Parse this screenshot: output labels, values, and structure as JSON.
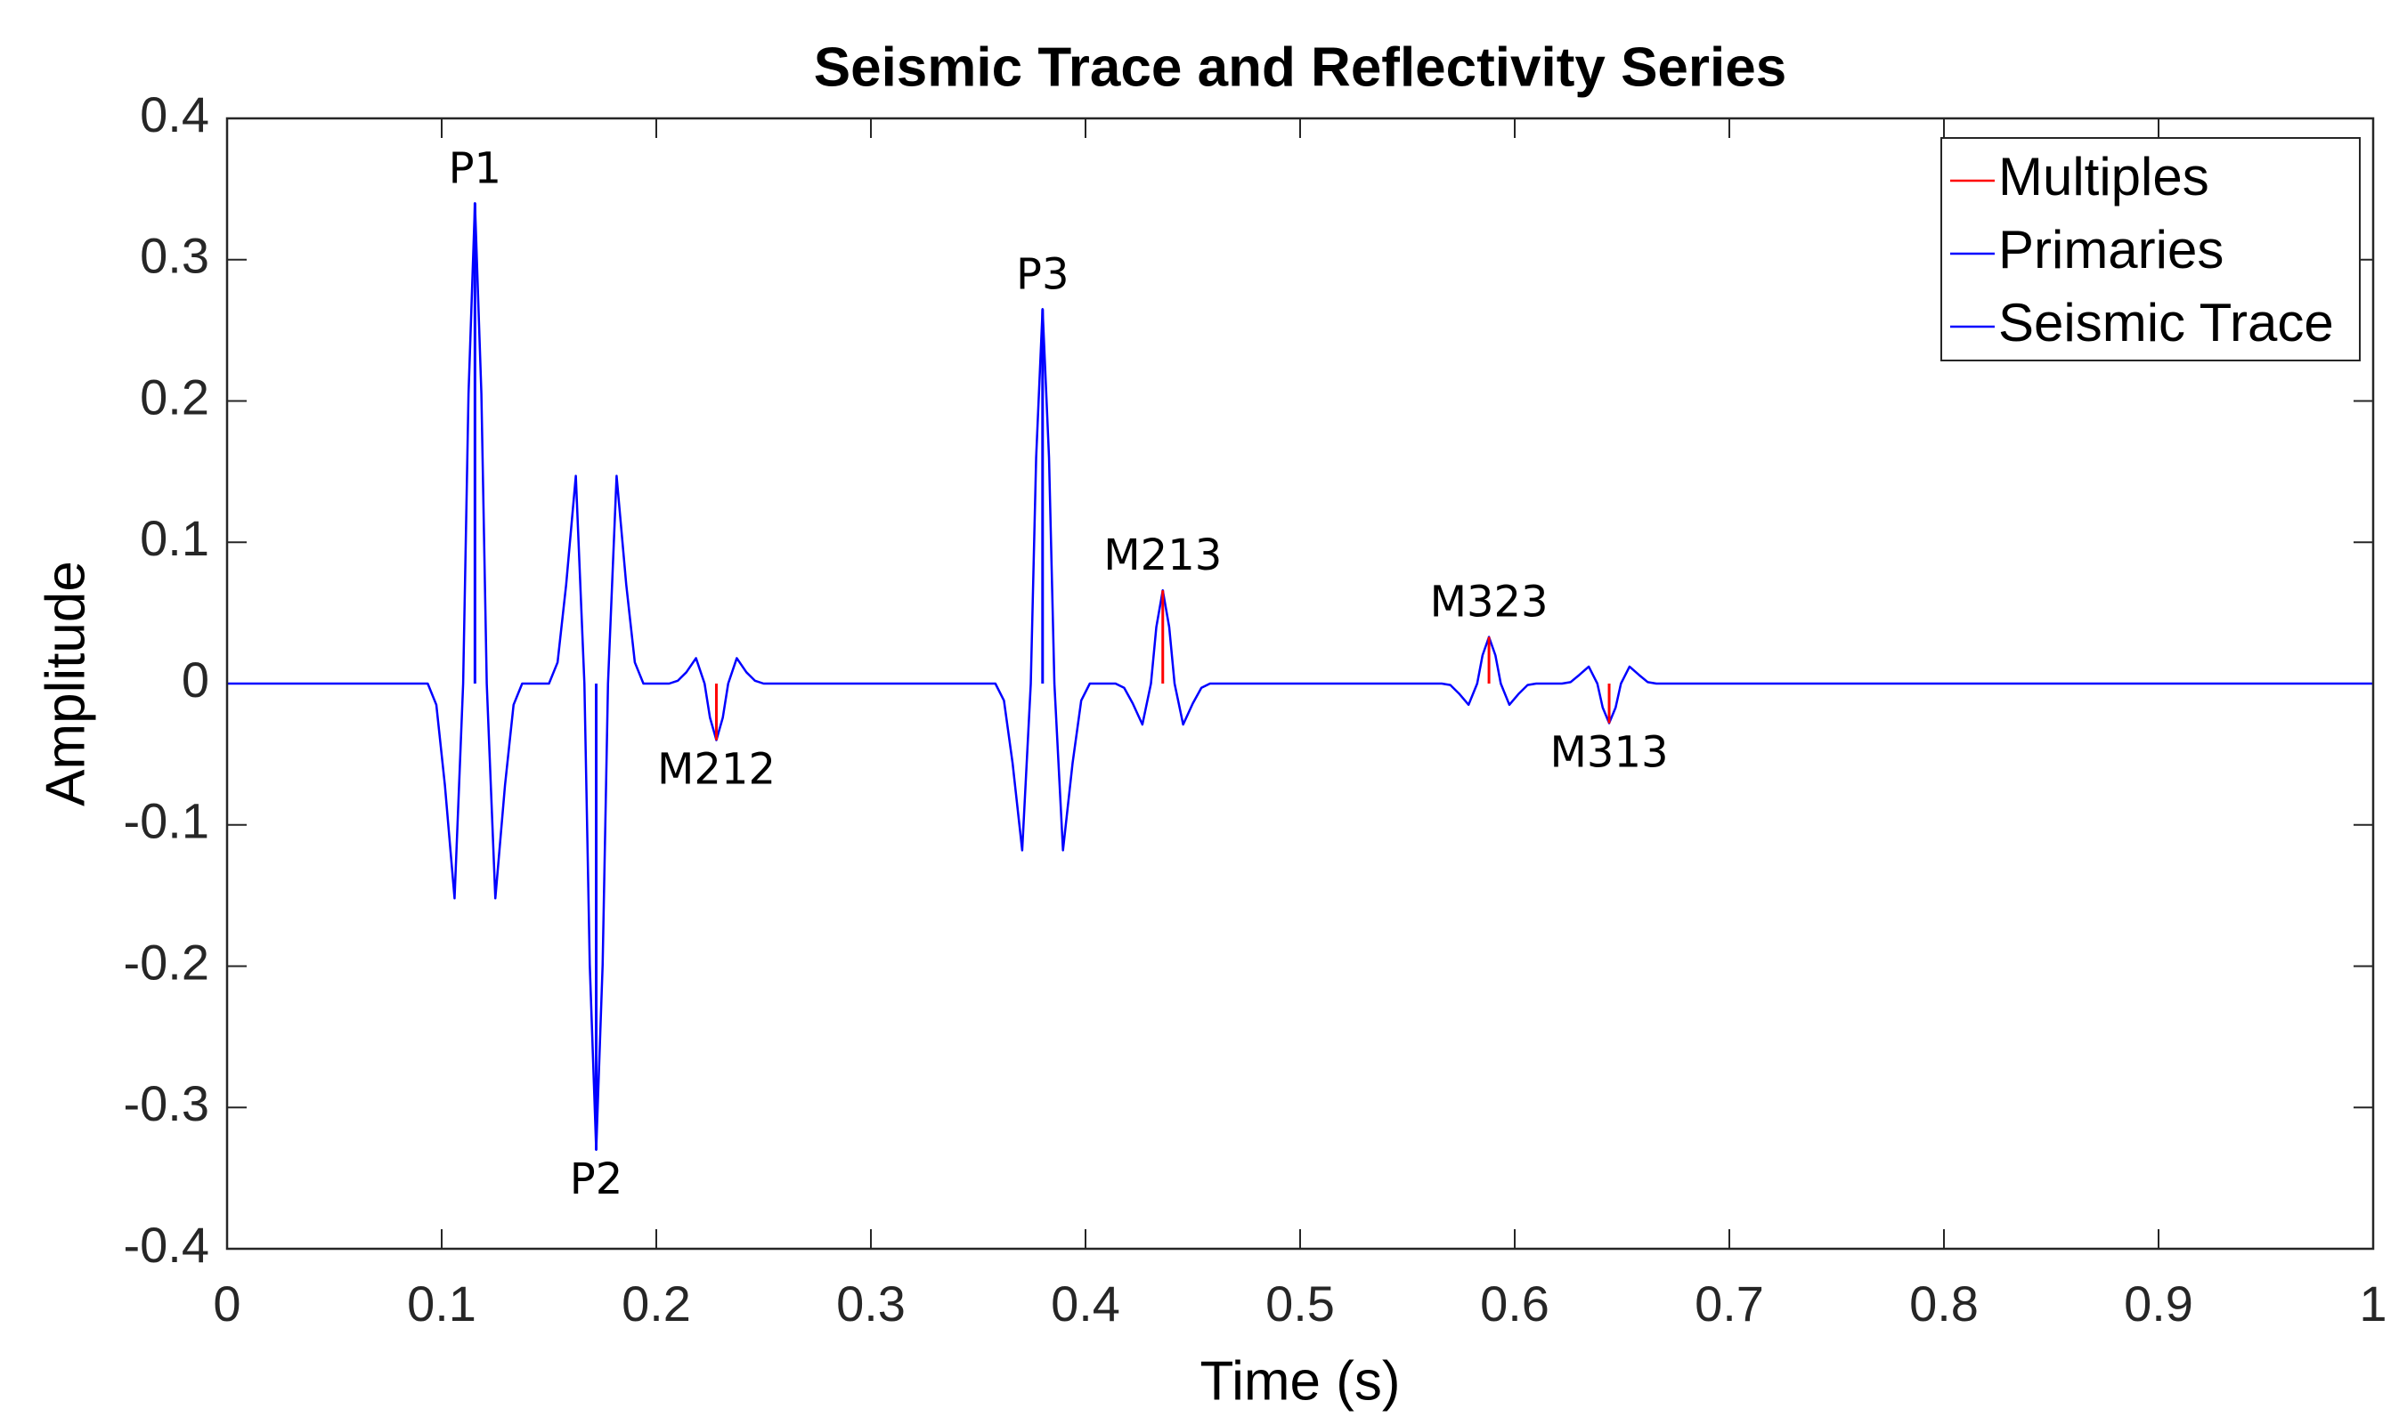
{
  "chart_data": {
    "type": "line",
    "title": "Seismic Trace and Reflectivity Series",
    "x_label": "Time (s)",
    "y_label": "Amplitude",
    "xlim": [
      0,
      1
    ],
    "ylim": [
      -0.4,
      0.4
    ],
    "xticks": [
      0,
      0.1,
      0.2,
      0.3,
      0.4,
      0.5,
      0.6,
      0.7,
      0.8,
      0.9,
      1
    ],
    "yticks": [
      -0.4,
      -0.3,
      -0.2,
      -0.1,
      0,
      0.1,
      0.2,
      0.3,
      0.4
    ],
    "grid": false,
    "legend_position": "top-right",
    "series": [
      {
        "name": "Multiples",
        "color": "#ff0000",
        "style": "stem",
        "x": [
          0.228,
          0.436,
          0.588,
          0.644
        ],
        "values": [
          -0.04,
          0.066,
          0.033,
          -0.028
        ],
        "point_labels": [
          "M212",
          "M213",
          "M323",
          "M313"
        ]
      },
      {
        "name": "Primaries",
        "color": "#0000ff",
        "style": "stem",
        "x": [
          0.1155,
          0.172,
          0.38
        ],
        "values": [
          0.34,
          -0.33,
          0.265
        ],
        "point_labels": [
          "P1",
          "P2",
          "P3"
        ]
      },
      {
        "name": "Seismic Trace",
        "color": "#0000ff",
        "style": "line",
        "x": [
          0,
          0.0935,
          0.0975,
          0.1015,
          0.106,
          0.11,
          0.1125,
          0.1155,
          0.1185,
          0.121,
          0.125,
          0.1295,
          0.1335,
          0.1375,
          0.15,
          0.154,
          0.158,
          0.1625,
          0.1665,
          0.169,
          0.172,
          0.175,
          0.1775,
          0.1815,
          0.186,
          0.19,
          0.194,
          0.206,
          0.21,
          0.214,
          0.2185,
          0.2225,
          0.225,
          0.228,
          0.231,
          0.2335,
          0.2375,
          0.242,
          0.246,
          0.25,
          0.358,
          0.362,
          0.366,
          0.3705,
          0.3745,
          0.377,
          0.38,
          0.383,
          0.3855,
          0.3895,
          0.394,
          0.398,
          0.402,
          0.414,
          0.418,
          0.422,
          0.4265,
          0.4305,
          0.433,
          0.436,
          0.439,
          0.4415,
          0.4455,
          0.45,
          0.454,
          0.458,
          0.566,
          0.57,
          0.574,
          0.5785,
          0.5825,
          0.585,
          0.588,
          0.591,
          0.5935,
          0.5975,
          0.602,
          0.606,
          0.61,
          0.622,
          0.626,
          0.63,
          0.6345,
          0.6385,
          0.641,
          0.644,
          0.647,
          0.6495,
          0.6535,
          0.658,
          0.662,
          0.666,
          1
        ],
        "values": [
          0,
          0,
          -0.015,
          -0.072,
          -0.152,
          0,
          0.205,
          0.34,
          0.205,
          0,
          -0.152,
          -0.072,
          -0.015,
          0,
          0,
          0.015,
          0.07,
          0.147,
          0,
          -0.199,
          -0.33,
          -0.199,
          0,
          0.147,
          0.07,
          0.015,
          0,
          0,
          0.002,
          0.008,
          0.018,
          0,
          -0.024,
          -0.04,
          -0.024,
          0,
          0.018,
          0.008,
          0.002,
          0,
          0,
          -0.012,
          -0.056,
          -0.118,
          0,
          0.16,
          0.265,
          0.16,
          0,
          -0.118,
          -0.056,
          -0.012,
          0,
          0,
          -0.003,
          -0.014,
          -0.029,
          0,
          0.04,
          0.066,
          0.04,
          0,
          -0.029,
          -0.014,
          -0.003,
          0,
          0,
          -0.001,
          -0.007,
          -0.015,
          0,
          0.02,
          0.033,
          0.02,
          0,
          -0.015,
          -0.007,
          -0.001,
          0,
          0,
          0.001,
          0.006,
          0.012,
          0,
          -0.017,
          -0.028,
          -0.017,
          0,
          0.012,
          0.006,
          0.001,
          0,
          0
        ]
      }
    ]
  }
}
